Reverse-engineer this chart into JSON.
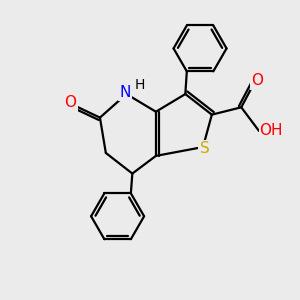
{
  "bg_color": "#ebebeb",
  "bond_color": "#000000",
  "bond_width": 1.6,
  "atom_colors": {
    "N": "#0000ff",
    "O": "#ff0000",
    "S": "#ccaa00",
    "C": "#000000",
    "H": "#000000"
  },
  "font_size": 11,
  "xlim": [
    0,
    10
  ],
  "ylim": [
    0,
    10
  ]
}
